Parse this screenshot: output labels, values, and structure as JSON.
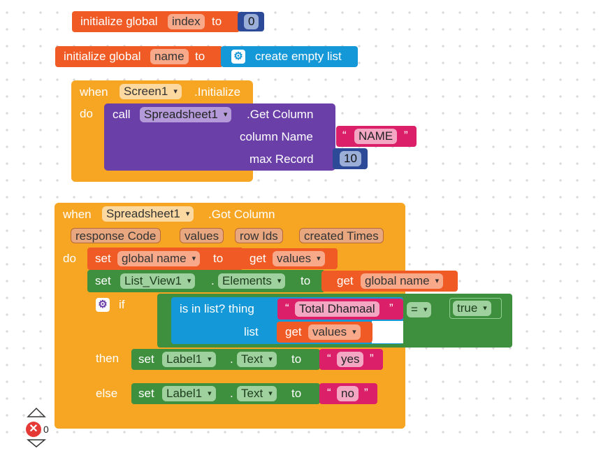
{
  "blocks": {
    "init_index": {
      "label": "initialize global",
      "var": "index",
      "to": "to",
      "value": "0"
    },
    "init_name": {
      "label": "initialize global",
      "var": "name",
      "to": "to",
      "value_label": "create empty list"
    },
    "screen_init": {
      "when": "when",
      "component": "Screen1",
      "event": ".Initialize",
      "do": "do",
      "call": "call",
      "call_component": "Spreadsheet1",
      "method": ".Get Column",
      "param1_label": "column Name",
      "param1_value": "NAME",
      "param2_label": "max Record",
      "param2_value": "10"
    },
    "got_column": {
      "when": "when",
      "component": "Spreadsheet1",
      "event": ".Got Column",
      "params": [
        "response Code",
        "values",
        "row Ids",
        "created Times"
      ],
      "do": "do",
      "set1": {
        "set": "set",
        "var": "global name",
        "to": "to",
        "get": "get",
        "value": "values"
      },
      "set2": {
        "set": "set",
        "component": "List_View1",
        "dot": ".",
        "prop": "Elements",
        "to": "to",
        "get": "get",
        "value": "global name"
      },
      "if": {
        "if": "if",
        "test_label": "is in list? thing",
        "thing": "Total Dhamaal",
        "list_label": "list",
        "get": "get",
        "list_value": "values",
        "op": "=",
        "bool": "true",
        "then": "then",
        "else": "else",
        "then_set": {
          "set": "set",
          "component": "Label1",
          "dot": ".",
          "prop": "Text",
          "to": "to",
          "value": "yes"
        },
        "else_set": {
          "set": "set",
          "component": "Label1",
          "dot": ".",
          "prop": "Text",
          "to": "to",
          "value": "no"
        }
      }
    }
  },
  "workspace": {
    "error_count": "0"
  },
  "colors": {
    "variable": "#f05a24",
    "event": "#f6a623",
    "procedure": "#6a3fa8",
    "text": "#db1f68",
    "component_set": "#3e8f3e",
    "list": "#1498d8",
    "math": "#2d4a98"
  }
}
